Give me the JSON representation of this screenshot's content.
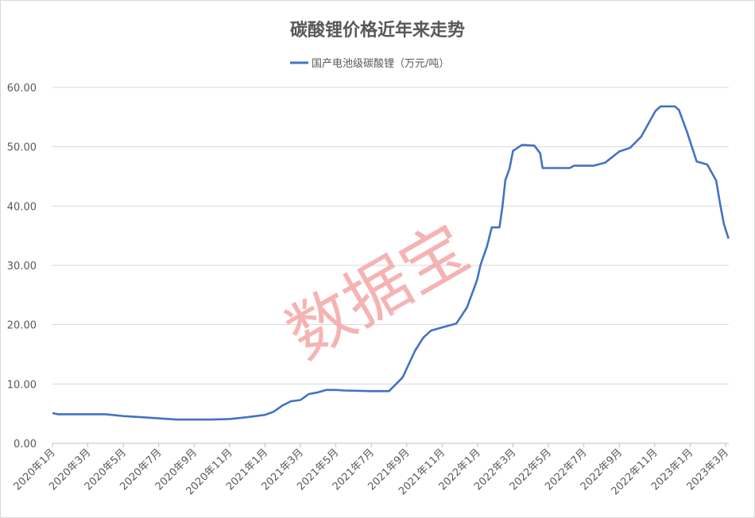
{
  "chart_data": {
    "type": "line",
    "title": "碳酸锂价格近年来走势",
    "legend_position": "top",
    "grid": true,
    "ylim": [
      0,
      60
    ],
    "yticks": [
      "0.00",
      "10.00",
      "20.00",
      "30.00",
      "40.00",
      "50.00",
      "60.00"
    ],
    "xticks": [
      "2020年1月",
      "2020年3月",
      "2020年5月",
      "2020年7月",
      "2020年9月",
      "2020年11月",
      "2021年1月",
      "2021年3月",
      "2021年5月",
      "2021年7月",
      "2021年9月",
      "2021年11月",
      "2022年1月",
      "2022年3月",
      "2022年5月",
      "2022年7月",
      "2022年9月",
      "2022年11月",
      "2023年1月",
      "2023年3月"
    ],
    "series": [
      {
        "name": "国产电池级碳酸锂（万元/吨）",
        "color": "#4472C4",
        "points": [
          [
            "2020-01-01",
            5.1
          ],
          [
            "2020-01-10",
            4.9
          ],
          [
            "2020-04-01",
            4.9
          ],
          [
            "2020-05-01",
            4.6
          ],
          [
            "2020-06-01",
            4.4
          ],
          [
            "2020-07-01",
            4.2
          ],
          [
            "2020-08-01",
            4.0
          ],
          [
            "2020-10-01",
            4.0
          ],
          [
            "2020-11-01",
            4.1
          ],
          [
            "2020-12-01",
            4.4
          ],
          [
            "2021-01-01",
            4.8
          ],
          [
            "2021-01-15",
            5.3
          ],
          [
            "2021-02-01",
            6.4
          ],
          [
            "2021-02-15",
            7.1
          ],
          [
            "2021-03-01",
            7.3
          ],
          [
            "2021-03-15",
            8.3
          ],
          [
            "2021-04-01",
            8.6
          ],
          [
            "2021-04-15",
            9.0
          ],
          [
            "2021-05-01",
            9.0
          ],
          [
            "2021-05-15",
            8.9
          ],
          [
            "2021-07-01",
            8.8
          ],
          [
            "2021-08-01",
            8.8
          ],
          [
            "2021-08-24",
            11.1
          ],
          [
            "2021-09-15",
            15.6
          ],
          [
            "2021-09-29",
            17.8
          ],
          [
            "2021-10-12",
            19.0
          ],
          [
            "2021-10-26",
            19.4
          ],
          [
            "2021-11-25",
            20.2
          ],
          [
            "2021-12-13",
            22.9
          ],
          [
            "2021-12-30",
            27.5
          ],
          [
            "2022-01-06",
            30.1
          ],
          [
            "2022-01-17",
            33.2
          ],
          [
            "2022-01-25",
            36.4
          ],
          [
            "2022-02-08",
            36.4
          ],
          [
            "2022-02-13",
            39.9
          ],
          [
            "2022-02-18",
            44.4
          ],
          [
            "2022-02-25",
            46.3
          ],
          [
            "2022-03-01",
            49.3
          ],
          [
            "2022-03-16",
            50.3
          ],
          [
            "2022-04-07",
            50.2
          ],
          [
            "2022-04-17",
            48.9
          ],
          [
            "2022-04-21",
            46.4
          ],
          [
            "2022-06-07",
            46.4
          ],
          [
            "2022-06-14",
            46.8
          ],
          [
            "2022-07-17",
            46.8
          ],
          [
            "2022-08-07",
            47.3
          ],
          [
            "2022-09-01",
            49.2
          ],
          [
            "2022-09-19",
            49.8
          ],
          [
            "2022-10-08",
            51.7
          ],
          [
            "2022-11-02",
            56.0
          ],
          [
            "2022-11-11",
            56.8
          ],
          [
            "2022-12-05",
            56.8
          ],
          [
            "2022-12-12",
            56.2
          ],
          [
            "2022-12-26",
            52.4
          ],
          [
            "2023-01-12",
            47.5
          ],
          [
            "2023-01-30",
            47.0
          ],
          [
            "2023-02-15",
            44.3
          ],
          [
            "2023-02-22",
            40.2
          ],
          [
            "2023-02-28",
            37.0
          ],
          [
            "2023-03-06",
            34.5
          ]
        ]
      }
    ]
  },
  "watermark": {
    "text": "数据宝",
    "color": "#F4A6A6"
  }
}
